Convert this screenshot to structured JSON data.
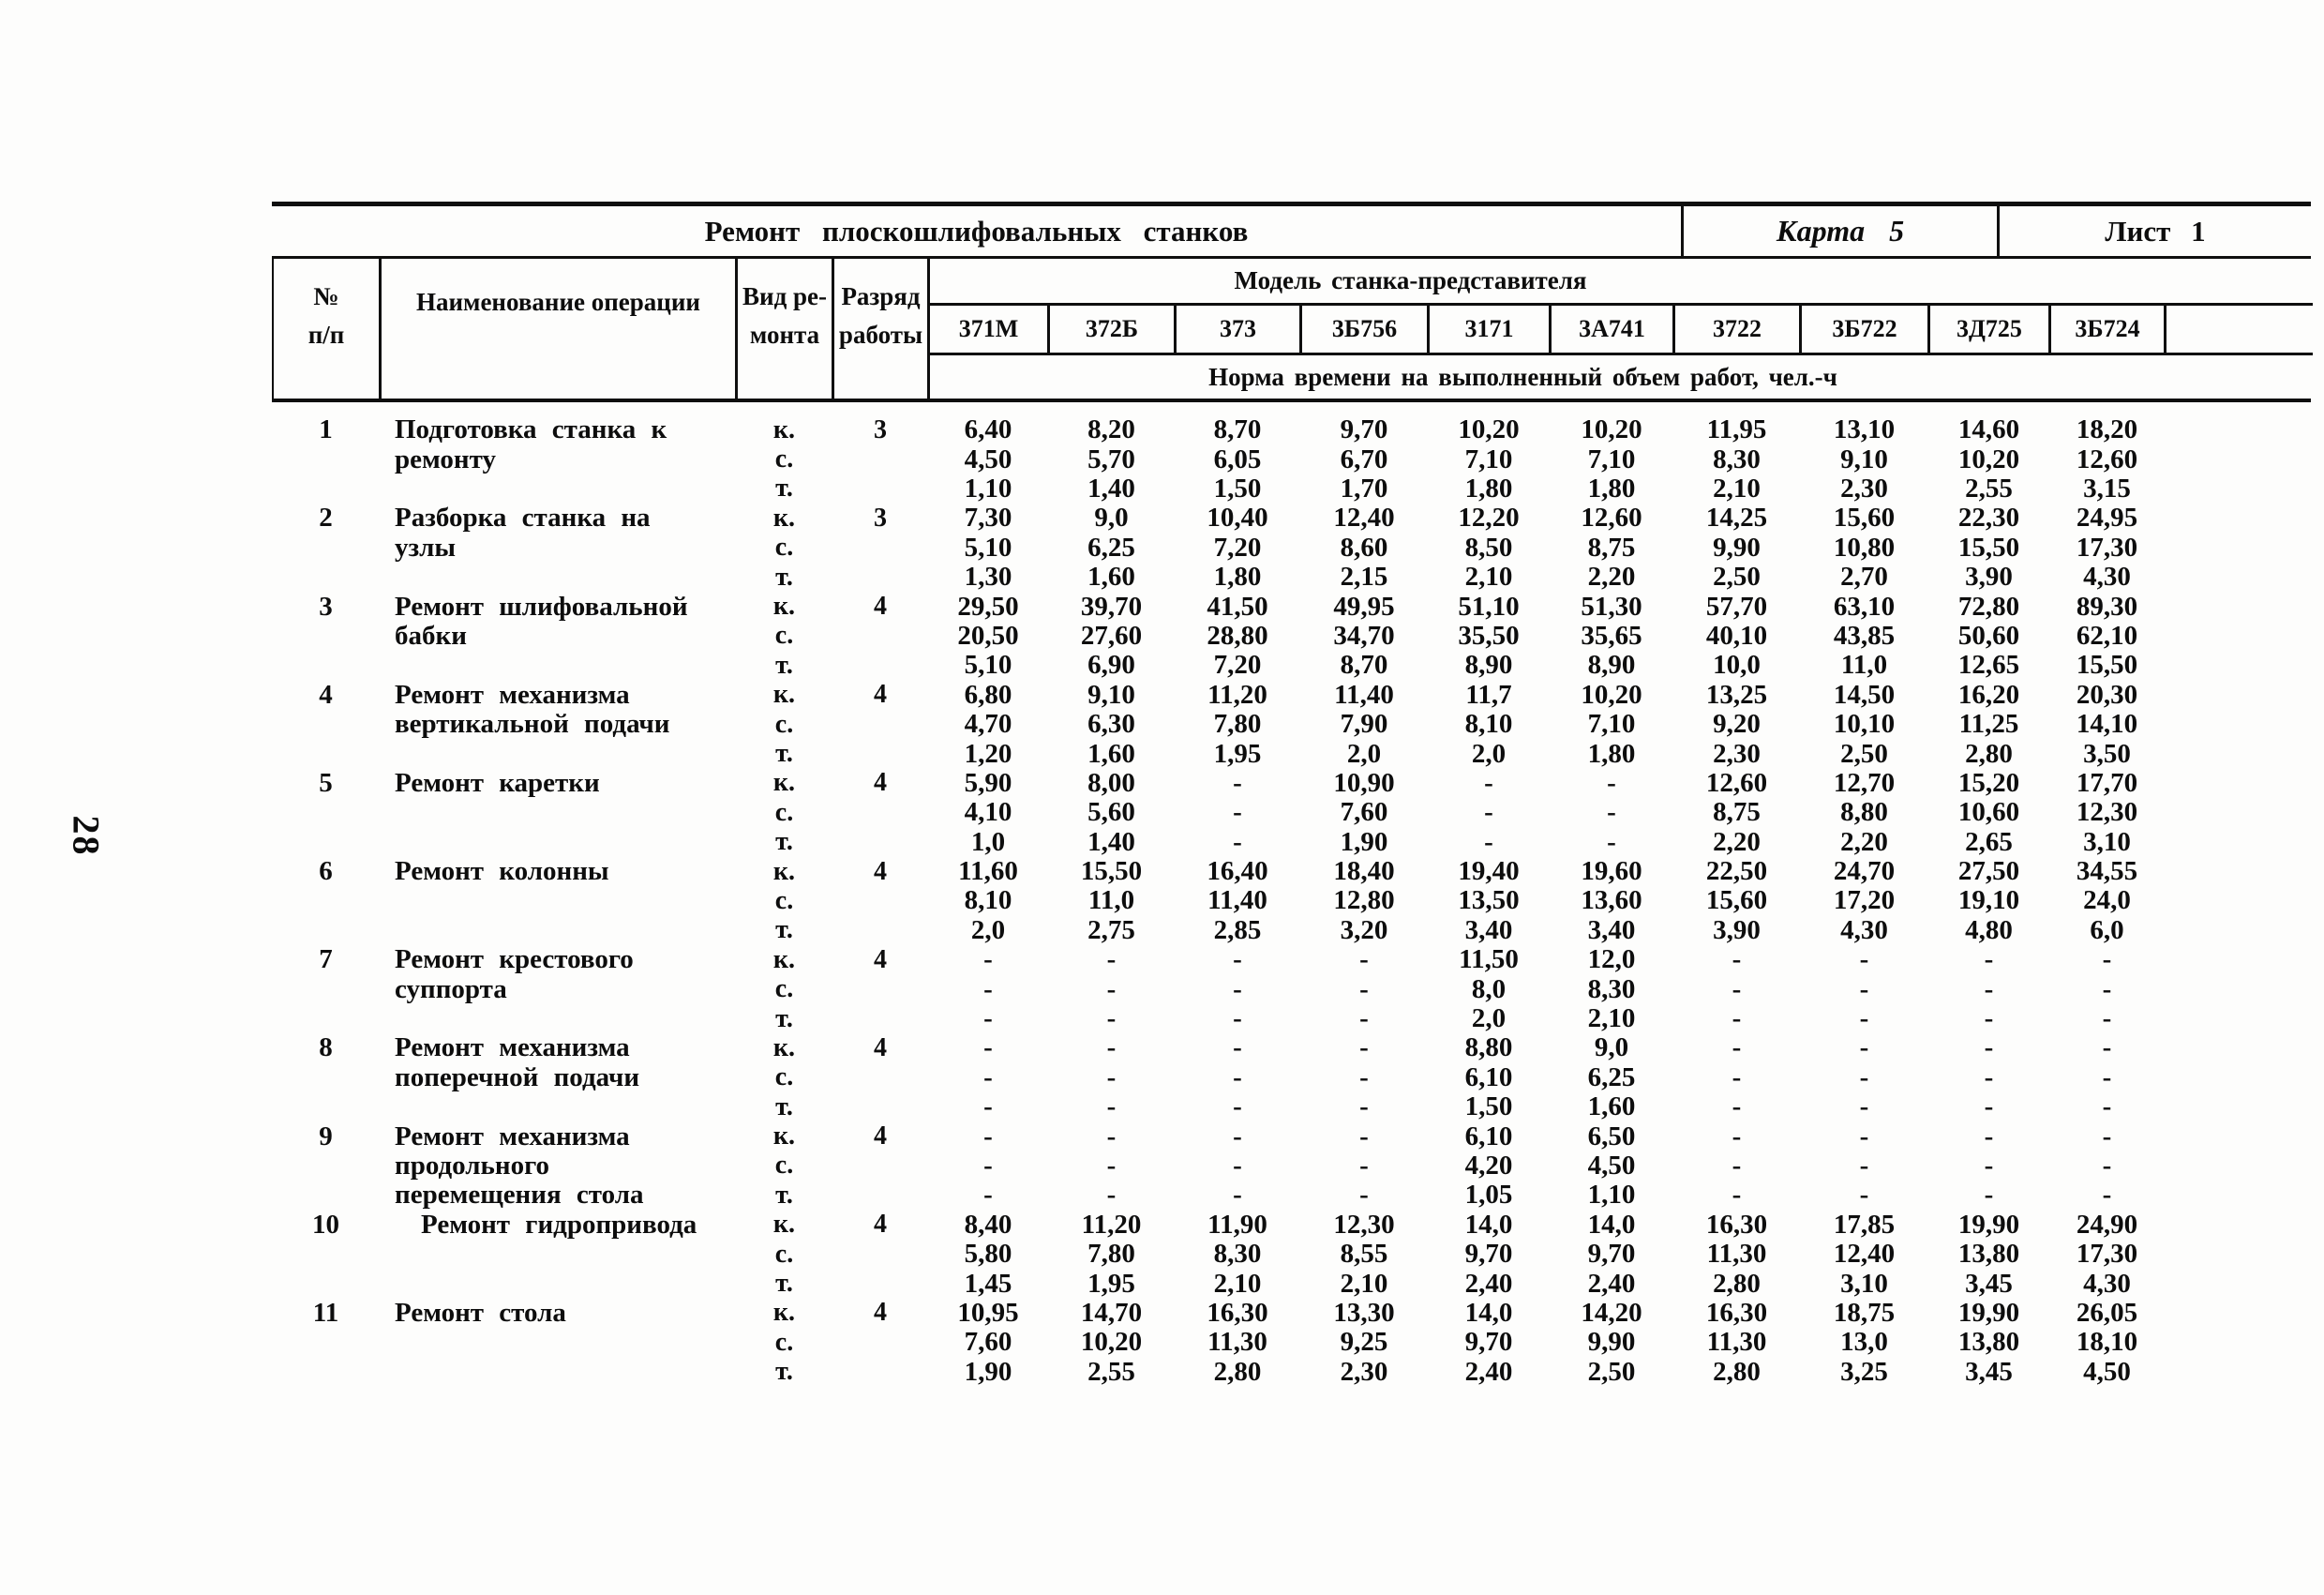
{
  "page_number": "28",
  "title_bar": {
    "title": "Ремонт плоскошлифовальных станков",
    "card": "Карта 5",
    "sheet": "Лист 1"
  },
  "header": {
    "num": [
      "№",
      "п/п"
    ],
    "operation": "Наименование операции",
    "repair_kind": [
      "Вид ре-",
      "монта"
    ],
    "grade": [
      "Разряд",
      "работы"
    ],
    "model_group": "Модель станка-представителя",
    "models": [
      "371М",
      "372Б",
      "373",
      "3Б756",
      "3171",
      "3А741",
      "3722",
      "3Б722",
      "3Д725",
      "3Б724"
    ],
    "norm": "Норма времени на выполненный объем работ, чел.-ч"
  },
  "rows": [
    {
      "num": "1",
      "name_lines": [
        "Подготовка станка к",
        "ремонту"
      ],
      "grade": "3",
      "subrows": [
        {
          "kind": "к.",
          "values": [
            "6,40",
            "8,20",
            "8,70",
            "9,70",
            "10,20",
            "10,20",
            "11,95",
            "13,10",
            "14,60",
            "18,20"
          ]
        },
        {
          "kind": "с.",
          "values": [
            "4,50",
            "5,70",
            "6,05",
            "6,70",
            "7,10",
            "7,10",
            "8,30",
            "9,10",
            "10,20",
            "12,60"
          ]
        },
        {
          "kind": "т.",
          "values": [
            "1,10",
            "1,40",
            "1,50",
            "1,70",
            "1,80",
            "1,80",
            "2,10",
            "2,30",
            "2,55",
            "3,15"
          ]
        }
      ]
    },
    {
      "num": "2",
      "name_lines": [
        "Разборка станка на",
        "узлы"
      ],
      "grade": "3",
      "subrows": [
        {
          "kind": "к.",
          "values": [
            "7,30",
            "9,0",
            "10,40",
            "12,40",
            "12,20",
            "12,60",
            "14,25",
            "15,60",
            "22,30",
            "24,95"
          ]
        },
        {
          "kind": "с.",
          "values": [
            "5,10",
            "6,25",
            "7,20",
            "8,60",
            "8,50",
            "8,75",
            "9,90",
            "10,80",
            "15,50",
            "17,30"
          ]
        },
        {
          "kind": "т.",
          "values": [
            "1,30",
            "1,60",
            "1,80",
            "2,15",
            "2,10",
            "2,20",
            "2,50",
            "2,70",
            "3,90",
            "4,30"
          ]
        }
      ]
    },
    {
      "num": "3",
      "name_lines": [
        "Ремонт шлифовальной",
        "бабки"
      ],
      "grade": "4",
      "subrows": [
        {
          "kind": "к.",
          "values": [
            "29,50",
            "39,70",
            "41,50",
            "49,95",
            "51,10",
            "51,30",
            "57,70",
            "63,10",
            "72,80",
            "89,30"
          ]
        },
        {
          "kind": "с.",
          "values": [
            "20,50",
            "27,60",
            "28,80",
            "34,70",
            "35,50",
            "35,65",
            "40,10",
            "43,85",
            "50,60",
            "62,10"
          ]
        },
        {
          "kind": "т.",
          "values": [
            "5,10",
            "6,90",
            "7,20",
            "8,70",
            "8,90",
            "8,90",
            "10,0",
            "11,0",
            "12,65",
            "15,50"
          ]
        }
      ]
    },
    {
      "num": "4",
      "name_lines": [
        "Ремонт механизма",
        "вертикальной подачи"
      ],
      "grade": "4",
      "subrows": [
        {
          "kind": "к.",
          "values": [
            "6,80",
            "9,10",
            "11,20",
            "11,40",
            "11,7",
            "10,20",
            "13,25",
            "14,50",
            "16,20",
            "20,30"
          ]
        },
        {
          "kind": "с.",
          "values": [
            "4,70",
            "6,30",
            "7,80",
            "7,90",
            "8,10",
            "7,10",
            "9,20",
            "10,10",
            "11,25",
            "14,10"
          ]
        },
        {
          "kind": "т.",
          "values": [
            "1,20",
            "1,60",
            "1,95",
            "2,0",
            "2,0",
            "1,80",
            "2,30",
            "2,50",
            "2,80",
            "3,50"
          ]
        }
      ]
    },
    {
      "num": "5",
      "name_lines": [
        "Ремонт каретки"
      ],
      "grade": "4",
      "subrows": [
        {
          "kind": "к.",
          "values": [
            "5,90",
            "8,00",
            "-",
            "10,90",
            "-",
            "-",
            "12,60",
            "12,70",
            "15,20",
            "17,70"
          ]
        },
        {
          "kind": "с.",
          "values": [
            "4,10",
            "5,60",
            "-",
            "7,60",
            "-",
            "-",
            "8,75",
            "8,80",
            "10,60",
            "12,30"
          ]
        },
        {
          "kind": "т.",
          "values": [
            "1,0",
            "1,40",
            "-",
            "1,90",
            "-",
            "-",
            "2,20",
            "2,20",
            "2,65",
            "3,10"
          ]
        }
      ]
    },
    {
      "num": "6",
      "name_lines": [
        "Ремонт колонны"
      ],
      "grade": "4",
      "subrows": [
        {
          "kind": "к.",
          "values": [
            "11,60",
            "15,50",
            "16,40",
            "18,40",
            "19,40",
            "19,60",
            "22,50",
            "24,70",
            "27,50",
            "34,55"
          ]
        },
        {
          "kind": "с.",
          "values": [
            "8,10",
            "11,0",
            "11,40",
            "12,80",
            "13,50",
            "13,60",
            "15,60",
            "17,20",
            "19,10",
            "24,0"
          ]
        },
        {
          "kind": "т.",
          "values": [
            "2,0",
            "2,75",
            "2,85",
            "3,20",
            "3,40",
            "3,40",
            "3,90",
            "4,30",
            "4,80",
            "6,0"
          ]
        }
      ]
    },
    {
      "num": "7",
      "name_lines": [
        "Ремонт крестового",
        "суппорта"
      ],
      "grade": "4",
      "subrows": [
        {
          "kind": "к.",
          "values": [
            "-",
            "-",
            "-",
            "-",
            "11,50",
            "12,0",
            "-",
            "-",
            "-",
            "-"
          ]
        },
        {
          "kind": "с.",
          "values": [
            "-",
            "-",
            "-",
            "-",
            "8,0",
            "8,30",
            "-",
            "-",
            "-",
            "-"
          ]
        },
        {
          "kind": "т.",
          "values": [
            "-",
            "-",
            "-",
            "-",
            "2,0",
            "2,10",
            "-",
            "-",
            "-",
            "-"
          ]
        }
      ]
    },
    {
      "num": "8",
      "name_lines": [
        "Ремонт механизма",
        "поперечной подачи"
      ],
      "grade": "4",
      "subrows": [
        {
          "kind": "к.",
          "values": [
            "-",
            "-",
            "-",
            "-",
            "8,80",
            "9,0",
            "-",
            "-",
            "-",
            "-"
          ]
        },
        {
          "kind": "с.",
          "values": [
            "-",
            "-",
            "-",
            "-",
            "6,10",
            "6,25",
            "-",
            "-",
            "-",
            "-"
          ]
        },
        {
          "kind": "т.",
          "values": [
            "-",
            "-",
            "-",
            "-",
            "1,50",
            "1,60",
            "-",
            "-",
            "-",
            "-"
          ]
        }
      ]
    },
    {
      "num": "9",
      "name_lines": [
        "Ремонт механизма",
        "продольного",
        "перемещения стола"
      ],
      "grade": "4",
      "subrows": [
        {
          "kind": "к.",
          "values": [
            "-",
            "-",
            "-",
            "-",
            "6,10",
            "6,50",
            "-",
            "-",
            "-",
            "-"
          ]
        },
        {
          "kind": "с.",
          "values": [
            "-",
            "-",
            "-",
            "-",
            "4,20",
            "4,50",
            "-",
            "-",
            "-",
            "-"
          ]
        },
        {
          "kind": "т.",
          "values": [
            "-",
            "-",
            "-",
            "-",
            "1,05",
            "1,10",
            "-",
            "-",
            "-",
            "-"
          ]
        }
      ]
    },
    {
      "num": "10",
      "name_lines": [
        "Ремонт гидропривода"
      ],
      "grade": "4",
      "subrows": [
        {
          "kind": "к.",
          "values": [
            "8,40",
            "11,20",
            "11,90",
            "12,30",
            "14,0",
            "14,0",
            "16,30",
            "17,85",
            "19,90",
            "24,90"
          ]
        },
        {
          "kind": "с.",
          "values": [
            "5,80",
            "7,80",
            "8,30",
            "8,55",
            "9,70",
            "9,70",
            "11,30",
            "12,40",
            "13,80",
            "17,30"
          ]
        },
        {
          "kind": "т.",
          "values": [
            "1,45",
            "1,95",
            "2,10",
            "2,10",
            "2,40",
            "2,40",
            "2,80",
            "3,10",
            "3,45",
            "4,30"
          ]
        }
      ]
    },
    {
      "num": "11",
      "name_lines": [
        "Ремонт стола"
      ],
      "grade": "4",
      "subrows": [
        {
          "kind": "к.",
          "values": [
            "10,95",
            "14,70",
            "16,30",
            "13,30",
            "14,0",
            "14,20",
            "16,30",
            "18,75",
            "19,90",
            "26,05"
          ]
        },
        {
          "kind": "с.",
          "values": [
            "7,60",
            "10,20",
            "11,30",
            "9,25",
            "9,70",
            "9,90",
            "11,30",
            "13,0",
            "13,80",
            "18,10"
          ]
        },
        {
          "kind": "т.",
          "values": [
            "1,90",
            "2,55",
            "2,80",
            "2,30",
            "2,40",
            "2,50",
            "2,80",
            "3,25",
            "3,45",
            "4,50"
          ]
        }
      ]
    }
  ]
}
